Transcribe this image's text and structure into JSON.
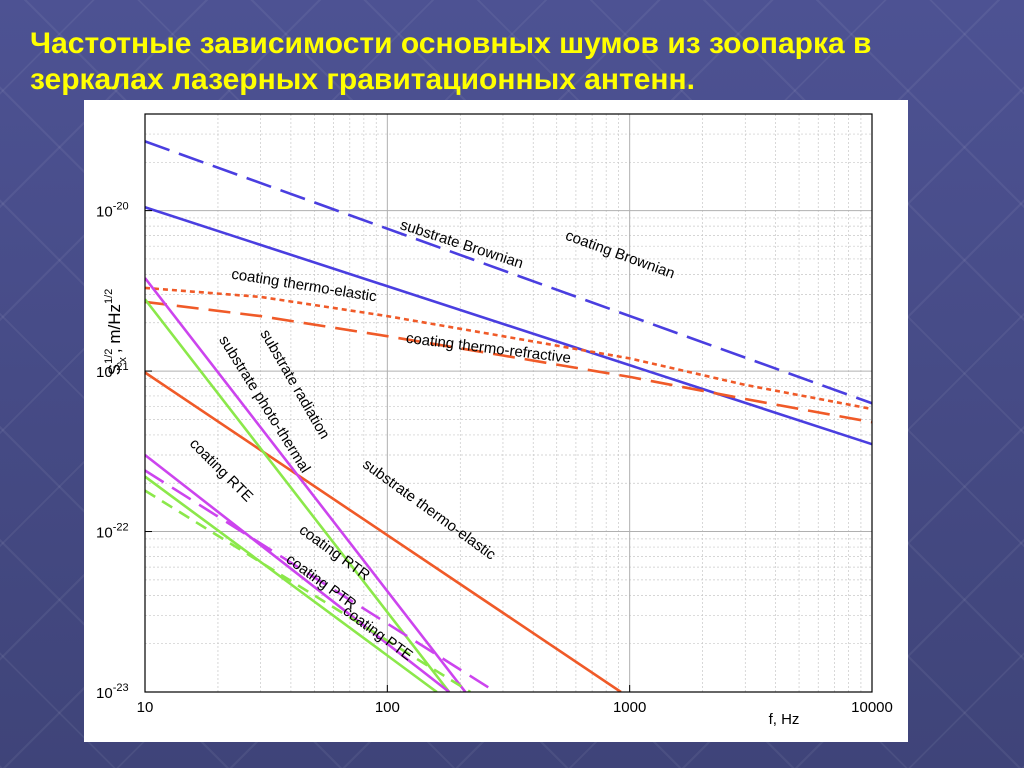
{
  "title": "Частотные зависимости основных шумов из зоопарка в зеркалах лазерных гравитационных антенн.",
  "colors": {
    "blue": "#4a3ee0",
    "orange": "#f05a28",
    "green": "#8be84a",
    "magenta": "#cc44ee"
  },
  "chart_data": {
    "type": "line",
    "title": "",
    "xlabel": "f, Hz",
    "ylabel": "S_x^{1/2}, m/Hz^{1/2}",
    "xscale": "log",
    "yscale": "log",
    "xlim": [
      10,
      10000
    ],
    "ylim": [
      1e-23,
      4e-20
    ],
    "x_ticks": [
      {
        "value": 10,
        "label": "10"
      },
      {
        "value": 100,
        "label": "100"
      },
      {
        "value": 1000,
        "label": "1000"
      },
      {
        "value": 10000,
        "label": "10000"
      }
    ],
    "y_ticks": [
      {
        "value": 1e-23,
        "label": "10-23"
      },
      {
        "value": 1e-22,
        "label": "10-22"
      },
      {
        "value": 1e-21,
        "label": "10-21"
      },
      {
        "value": 1e-20,
        "label": "10-20"
      }
    ],
    "grid": true,
    "series": [
      {
        "name": "coating Brownian",
        "color": "#4a3ee0",
        "dash": "long",
        "x": [
          10,
          10000
        ],
        "y": [
          2.7e-20,
          6.3e-22
        ]
      },
      {
        "name": "substrate Brownian",
        "color": "#4a3ee0",
        "dash": "solid",
        "x": [
          10,
          10000
        ],
        "y": [
          1.05e-20,
          3.5e-22
        ]
      },
      {
        "name": "coating thermo-elastic",
        "color": "#f05a28",
        "dash": "dot",
        "x": [
          10,
          30,
          100,
          300,
          1000,
          3000,
          10000
        ],
        "y": [
          3.3e-21,
          2.9e-21,
          2.2e-21,
          1.65e-21,
          1.2e-21,
          8.2e-22,
          5.8e-22
        ]
      },
      {
        "name": "coating thermo-refractive",
        "color": "#f05a28",
        "dash": "longdash",
        "x": [
          10,
          30,
          100,
          300,
          1000,
          3000,
          10000
        ],
        "y": [
          2.7e-21,
          2.2e-21,
          1.65e-21,
          1.25e-21,
          9.2e-22,
          6.7e-22,
          4.8e-22
        ]
      },
      {
        "name": "substrate thermo-elastic",
        "color": "#f05a28",
        "dash": "solid",
        "x": [
          10,
          920
        ],
        "y": [
          9.8e-22,
          1e-23
        ]
      },
      {
        "name": "substrate radiation",
        "color": "#cc44ee",
        "dash": "solid",
        "x": [
          10,
          210
        ],
        "y": [
          3.8e-21,
          1e-23
        ]
      },
      {
        "name": "substrate photo-thermal",
        "color": "#8be84a",
        "dash": "solid",
        "x": [
          10,
          180
        ],
        "y": [
          2.8e-21,
          1e-23
        ]
      },
      {
        "name": "coating RTE",
        "color": "#cc44ee",
        "dash": "solid",
        "x": [
          10,
          180
        ],
        "y": [
          3e-22,
          1e-23
        ]
      },
      {
        "name": "coating RTR",
        "color": "#cc44ee",
        "dash": "longdash",
        "x": [
          10,
          280
        ],
        "y": [
          2.4e-22,
          1e-23
        ]
      },
      {
        "name": "coating PTR",
        "color": "#8be84a",
        "dash": "solid",
        "x": [
          10,
          160
        ],
        "y": [
          2.2e-22,
          1e-23
        ]
      },
      {
        "name": "coating PTE",
        "color": "#8be84a",
        "dash": "dash",
        "x": [
          10,
          220
        ],
        "y": [
          1.8e-22,
          1e-23
        ]
      }
    ],
    "annotations": [
      {
        "text": "coating Brownian",
        "x": 900,
        "y": 5e-21,
        "angle": 20
      },
      {
        "text": "substrate Brownian",
        "x": 200,
        "y": 5.8e-21,
        "angle": 18
      },
      {
        "text": "coating thermo-elastic",
        "x": 45,
        "y": 3.2e-21,
        "angle": 9
      },
      {
        "text": "coating thermo-refractive",
        "x": 260,
        "y": 1.3e-21,
        "angle": 7
      },
      {
        "text": "substrate radiation",
        "x": 40,
        "y": 8e-22,
        "angle": 60
      },
      {
        "text": "substrate photo-thermal",
        "x": 30,
        "y": 6e-22,
        "angle": 58
      },
      {
        "text": "coating RTE",
        "x": 20,
        "y": 2.3e-22,
        "angle": 45
      },
      {
        "text": "substrate thermo-elastic",
        "x": 145,
        "y": 1.3e-22,
        "angle": 36
      },
      {
        "text": "coating RTR",
        "x": 59,
        "y": 7e-23,
        "angle": 36
      },
      {
        "text": "coating PTR",
        "x": 52,
        "y": 4.6e-23,
        "angle": 36
      },
      {
        "text": "coating PTE",
        "x": 89,
        "y": 2.2e-23,
        "angle": 36
      }
    ]
  }
}
